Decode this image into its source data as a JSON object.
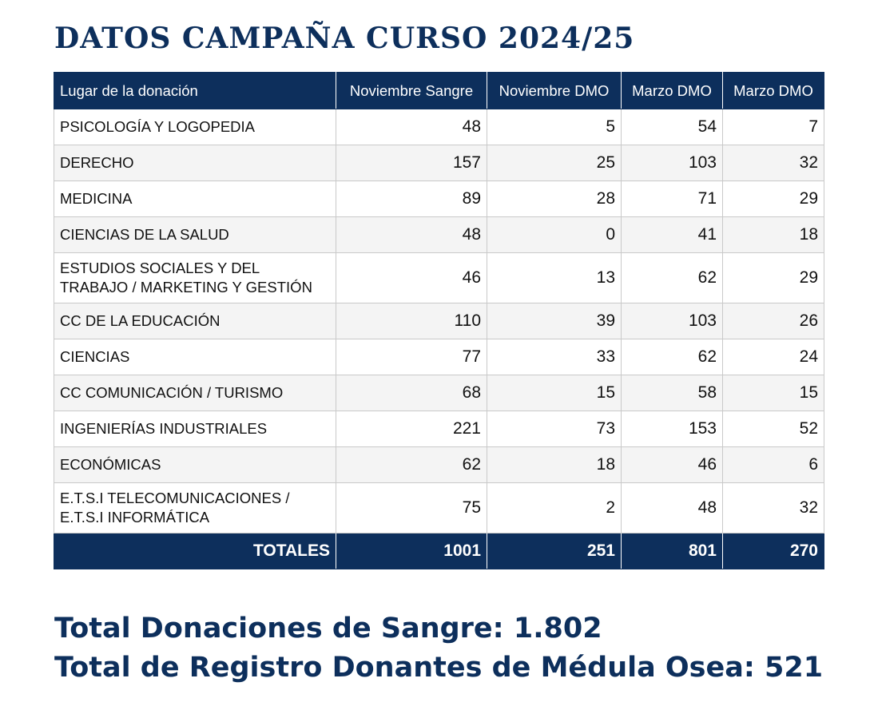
{
  "title": "DATOS CAMPAÑA CURSO 2024/25",
  "table": {
    "headers": [
      "Lugar de la donación",
      "Noviembre Sangre",
      "Noviembre DMO",
      "Marzo DMO",
      "Marzo DMO"
    ],
    "rows": [
      {
        "place": "PSICOLOGÍA Y LOGOPEDIA",
        "nov_sangre": "48",
        "nov_dmo": "5",
        "mar_dmo_1": "54",
        "mar_dmo_2": "7"
      },
      {
        "place": "DERECHO",
        "nov_sangre": "157",
        "nov_dmo": "25",
        "mar_dmo_1": "103",
        "mar_dmo_2": "32"
      },
      {
        "place": "MEDICINA",
        "nov_sangre": "89",
        "nov_dmo": "28",
        "mar_dmo_1": "71",
        "mar_dmo_2": "29"
      },
      {
        "place": "CIENCIAS DE LA SALUD",
        "nov_sangre": "48",
        "nov_dmo": "0",
        "mar_dmo_1": "41",
        "mar_dmo_2": "18"
      },
      {
        "place": "ESTUDIOS SOCIALES Y DEL TRABAJO / MARKETING Y GESTIÓN",
        "nov_sangre": "46",
        "nov_dmo": "13",
        "mar_dmo_1": "62",
        "mar_dmo_2": "29"
      },
      {
        "place": "CC DE LA EDUCACIÓN",
        "nov_sangre": "110",
        "nov_dmo": "39",
        "mar_dmo_1": "103",
        "mar_dmo_2": "26"
      },
      {
        "place": "CIENCIAS",
        "nov_sangre": "77",
        "nov_dmo": "33",
        "mar_dmo_1": "62",
        "mar_dmo_2": "24"
      },
      {
        "place": "CC COMUNICACIÓN / TURISMO",
        "nov_sangre": "68",
        "nov_dmo": "15",
        "mar_dmo_1": "58",
        "mar_dmo_2": "15"
      },
      {
        "place": "INGENIERÍAS INDUSTRIALES",
        "nov_sangre": "221",
        "nov_dmo": "73",
        "mar_dmo_1": "153",
        "mar_dmo_2": "52"
      },
      {
        "place": "ECONÓMICAS",
        "nov_sangre": "62",
        "nov_dmo": "18",
        "mar_dmo_1": "46",
        "mar_dmo_2": "6"
      },
      {
        "place": "E.T.S.I TELECOMUNICACIONES / E.T.S.I INFORMÁTICA",
        "nov_sangre": "75",
        "nov_dmo": "2",
        "mar_dmo_1": "48",
        "mar_dmo_2": "32"
      }
    ],
    "totals": {
      "label": "TOTALES",
      "nov_sangre": "1001",
      "nov_dmo": "251",
      "mar_dmo_1": "801",
      "mar_dmo_2": "270"
    }
  },
  "summary": {
    "blood": "Total Donaciones de Sangre: 1.802",
    "marrow": "Total de Registro Donantes de Médula Osea: 521"
  },
  "colors": {
    "brand_navy": "#0d2f5c",
    "row_alt": "#f4f4f4",
    "grid": "#c9c9c9"
  }
}
